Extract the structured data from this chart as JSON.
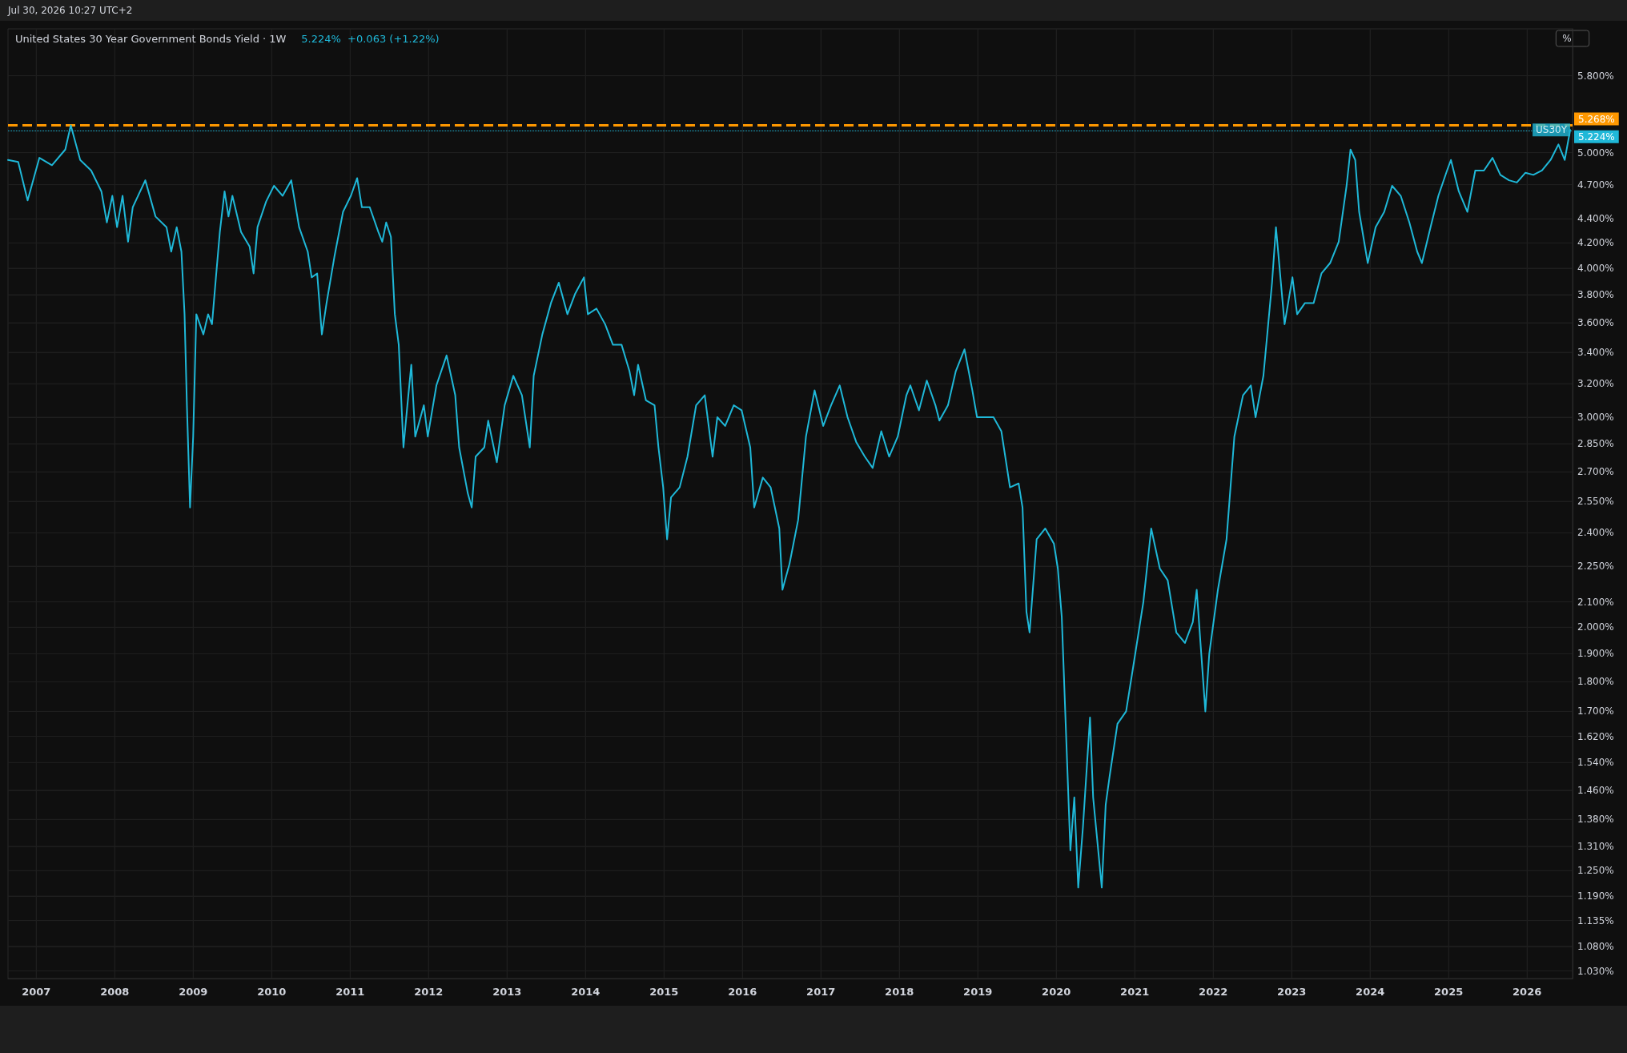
{
  "chart_data": {
    "type": "line",
    "title": "United States 30 Year Government Bonds Yield · 1W",
    "subtitle": "5.224%  +0.063 (+1.22%)",
    "ylabel": "%",
    "annotations": [
      "Jul 30, 2026 10:27 UTC+2",
      {
        "text": "US30Y",
        "x": 2026.55,
        "y": 5.224
      }
    ],
    "x": [
      2006.64,
      2006.77,
      2006.89,
      2007.04,
      2007.2,
      2007.37,
      2007.44,
      2007.56,
      2007.7,
      2007.83,
      2007.9,
      2007.97,
      2008.03,
      2008.1,
      2008.17,
      2008.23,
      2008.39,
      2008.52,
      2008.66,
      2008.72,
      2008.79,
      2008.85,
      2008.89,
      2008.92,
      2008.96,
      2009.0,
      2009.04,
      2009.13,
      2009.19,
      2009.24,
      2009.29,
      2009.34,
      2009.4,
      2009.45,
      2009.5,
      2009.61,
      2009.72,
      2009.77,
      2009.82,
      2009.93,
      2010.03,
      2010.14,
      2010.25,
      2010.35,
      2010.46,
      2010.51,
      2010.58,
      2010.64,
      2010.7,
      2010.8,
      2010.91,
      2011.01,
      2011.09,
      2011.15,
      2011.25,
      2011.36,
      2011.41,
      2011.46,
      2011.52,
      2011.57,
      2011.62,
      2011.68,
      2011.73,
      2011.78,
      2011.83,
      2011.94,
      2011.99,
      2012.1,
      2012.23,
      2012.34,
      2012.39,
      2012.5,
      2012.55,
      2012.6,
      2012.71,
      2012.76,
      2012.87,
      2012.97,
      2013.08,
      2013.19,
      2013.29,
      2013.34,
      2013.45,
      2013.56,
      2013.66,
      2013.77,
      2013.87,
      2013.98,
      2014.03,
      2014.14,
      2014.25,
      2014.35,
      2014.46,
      2014.56,
      2014.62,
      2014.67,
      2014.77,
      2014.88,
      2014.93,
      2014.99,
      2015.04,
      2015.09,
      2015.2,
      2015.3,
      2015.41,
      2015.52,
      2015.62,
      2015.68,
      2015.78,
      2015.89,
      2015.99,
      2016.1,
      2016.15,
      2016.26,
      2016.36,
      2016.47,
      2016.51,
      2016.6,
      2016.71,
      2016.81,
      2016.92,
      2017.03,
      2017.13,
      2017.24,
      2017.34,
      2017.45,
      2017.56,
      2017.66,
      2017.77,
      2017.87,
      2017.98,
      2018.09,
      2018.14,
      2018.25,
      2018.35,
      2018.46,
      2018.51,
      2018.62,
      2018.72,
      2018.83,
      2018.93,
      2018.99,
      2019.09,
      2019.2,
      2019.3,
      2019.41,
      2019.52,
      2019.57,
      2019.62,
      2019.66,
      2019.75,
      2019.86,
      2019.97,
      2020.02,
      2020.07,
      2020.12,
      2020.18,
      2020.23,
      2020.28,
      2020.34,
      2020.43,
      2020.47,
      2020.58,
      2020.63,
      2020.68,
      2020.78,
      2020.89,
      2020.99,
      2021.11,
      2021.21,
      2021.32,
      2021.42,
      2021.53,
      2021.64,
      2021.74,
      2021.79,
      2021.9,
      2021.95,
      2022.06,
      2022.17,
      2022.27,
      2022.38,
      2022.48,
      2022.54,
      2022.64,
      2022.75,
      2022.8,
      2022.91,
      2023.01,
      2023.07,
      2023.17,
      2023.28,
      2023.38,
      2023.49,
      2023.6,
      2023.7,
      2023.75,
      2023.81,
      2023.86,
      2023.97,
      2024.07,
      2024.18,
      2024.28,
      2024.39,
      2024.5,
      2024.6,
      2024.66,
      2024.77,
      2024.87,
      2024.98,
      2025.03,
      2025.13,
      2025.24,
      2025.34,
      2025.45,
      2025.56,
      2025.66,
      2025.77,
      2025.87,
      2025.98,
      2026.08,
      2026.19,
      2026.3,
      2026.4,
      2026.48,
      2026.55
    ],
    "series": [
      {
        "color": "#1fb8d8",
        "values": [
          4.93,
          4.91,
          4.56,
          4.95,
          4.88,
          5.03,
          5.27,
          4.93,
          4.83,
          4.64,
          4.37,
          4.6,
          4.33,
          4.6,
          4.21,
          4.5,
          4.74,
          4.42,
          4.33,
          4.13,
          4.33,
          4.13,
          3.66,
          3.07,
          2.52,
          2.89,
          3.66,
          3.52,
          3.66,
          3.59,
          3.93,
          4.29,
          4.64,
          4.42,
          4.6,
          4.29,
          4.17,
          3.96,
          4.33,
          4.55,
          4.69,
          4.6,
          4.74,
          4.33,
          4.13,
          3.93,
          3.96,
          3.52,
          3.74,
          4.09,
          4.46,
          4.6,
          4.76,
          4.5,
          4.5,
          4.29,
          4.21,
          4.37,
          4.25,
          3.66,
          3.45,
          2.83,
          3.07,
          3.32,
          2.89,
          3.07,
          2.89,
          3.19,
          3.38,
          3.13,
          2.83,
          2.59,
          2.52,
          2.78,
          2.83,
          2.98,
          2.75,
          3.07,
          3.25,
          3.13,
          2.83,
          3.25,
          3.52,
          3.74,
          3.89,
          3.66,
          3.81,
          3.93,
          3.66,
          3.7,
          3.59,
          3.45,
          3.45,
          3.28,
          3.13,
          3.32,
          3.1,
          3.07,
          2.83,
          2.62,
          2.37,
          2.57,
          2.62,
          2.78,
          3.07,
          3.13,
          2.78,
          3.0,
          2.95,
          3.07,
          3.04,
          2.83,
          2.52,
          2.67,
          2.62,
          2.42,
          2.15,
          2.26,
          2.46,
          2.89,
          3.16,
          2.95,
          3.07,
          3.19,
          3.0,
          2.86,
          2.78,
          2.72,
          2.92,
          2.78,
          2.89,
          3.13,
          3.19,
          3.04,
          3.22,
          3.07,
          2.98,
          3.07,
          3.28,
          3.42,
          3.16,
          3.0,
          3.0,
          3.0,
          2.92,
          2.62,
          2.64,
          2.52,
          2.06,
          1.98,
          2.37,
          2.42,
          2.35,
          2.24,
          2.04,
          1.66,
          1.3,
          1.44,
          1.21,
          1.36,
          1.68,
          1.44,
          1.21,
          1.42,
          1.5,
          1.66,
          1.7,
          1.87,
          2.1,
          2.42,
          2.24,
          2.19,
          1.98,
          1.94,
          2.02,
          2.15,
          1.7,
          1.9,
          2.15,
          2.37,
          2.89,
          3.13,
          3.19,
          3.0,
          3.25,
          3.89,
          4.33,
          3.59,
          3.93,
          3.66,
          3.74,
          3.74,
          3.96,
          4.04,
          4.21,
          4.69,
          5.03,
          4.93,
          4.46,
          4.04,
          4.33,
          4.46,
          4.69,
          4.6,
          4.37,
          4.13,
          4.04,
          4.33,
          4.6,
          4.83,
          4.93,
          4.64,
          4.46,
          4.83,
          4.83,
          4.95,
          4.79,
          4.74,
          4.72,
          4.81,
          4.79,
          4.83,
          4.93,
          5.08,
          4.93,
          5.224
        ]
      }
    ],
    "log": "y",
    "grid": true,
    "marker": "none",
    "line_style": "solid",
    "xlim": [
      2006.64,
      2026.58
    ],
    "xticks": [
      {
        "value": 2007,
        "label": "2007"
      },
      {
        "value": 2008,
        "label": "2008"
      },
      {
        "value": 2009,
        "label": "2009"
      },
      {
        "value": 2010,
        "label": "2010"
      },
      {
        "value": 2011,
        "label": "2011"
      },
      {
        "value": 2012,
        "label": "2012"
      },
      {
        "value": 2013,
        "label": "2013"
      },
      {
        "value": 2014,
        "label": "2014"
      },
      {
        "value": 2015,
        "label": "2015"
      },
      {
        "value": 2016,
        "label": "2016"
      },
      {
        "value": 2017,
        "label": "2017"
      },
      {
        "value": 2018,
        "label": "2018"
      },
      {
        "value": 2019,
        "label": "2019"
      },
      {
        "value": 2020,
        "label": "2020"
      },
      {
        "value": 2021,
        "label": "2021"
      },
      {
        "value": 2022,
        "label": "2022"
      },
      {
        "value": 2023,
        "label": "2023"
      },
      {
        "value": 2024,
        "label": "2024"
      },
      {
        "value": 2025,
        "label": "2025"
      },
      {
        "value": 2026,
        "label": "2026"
      }
    ],
    "ylim": [
      1.015,
      6.35
    ],
    "yticks": [
      {
        "value": 1.03,
        "label": "1.030%"
      },
      {
        "value": 1.08,
        "label": "1.080%"
      },
      {
        "value": 1.135,
        "label": "1.135%"
      },
      {
        "value": 1.19,
        "label": "1.190%"
      },
      {
        "value": 1.25,
        "label": "1.250%"
      },
      {
        "value": 1.31,
        "label": "1.310%"
      },
      {
        "value": 1.38,
        "label": "1.380%"
      },
      {
        "value": 1.46,
        "label": "1.460%"
      },
      {
        "value": 1.54,
        "label": "1.540%"
      },
      {
        "value": 1.62,
        "label": "1.620%"
      },
      {
        "value": 1.7,
        "label": "1.700%"
      },
      {
        "value": 1.8,
        "label": "1.800%"
      },
      {
        "value": 1.9,
        "label": "1.900%"
      },
      {
        "value": 2.0,
        "label": "2.000%"
      },
      {
        "value": 2.1,
        "label": "2.100%"
      },
      {
        "value": 2.25,
        "label": "2.250%"
      },
      {
        "value": 2.4,
        "label": "2.400%"
      },
      {
        "value": 2.55,
        "label": "2.550%"
      },
      {
        "value": 2.7,
        "label": "2.700%"
      },
      {
        "value": 2.85,
        "label": "2.850%"
      },
      {
        "value": 3.0,
        "label": "3.000%"
      },
      {
        "value": 3.2,
        "label": "3.200%"
      },
      {
        "value": 3.4,
        "label": "3.400%"
      },
      {
        "value": 3.6,
        "label": "3.600%"
      },
      {
        "value": 3.8,
        "label": "3.800%"
      },
      {
        "value": 4.0,
        "label": "4.000%"
      },
      {
        "value": 4.2,
        "label": "4.200%"
      },
      {
        "value": 4.4,
        "label": "4.400%"
      },
      {
        "value": 4.7,
        "label": "4.700%"
      },
      {
        "value": 5.0,
        "label": "5.000%"
      },
      {
        "value": 5.8,
        "label": "5.800%"
      }
    ],
    "ref_lines": [
      {
        "axis": "y",
        "value": 5.268,
        "label": "5.268%",
        "color": "#ff9800",
        "line_style": "dashed"
      },
      {
        "axis": "y",
        "value": 5.224,
        "label": "5.224%",
        "color": "#1fb8d8",
        "line_style": "dotted"
      }
    ]
  }
}
